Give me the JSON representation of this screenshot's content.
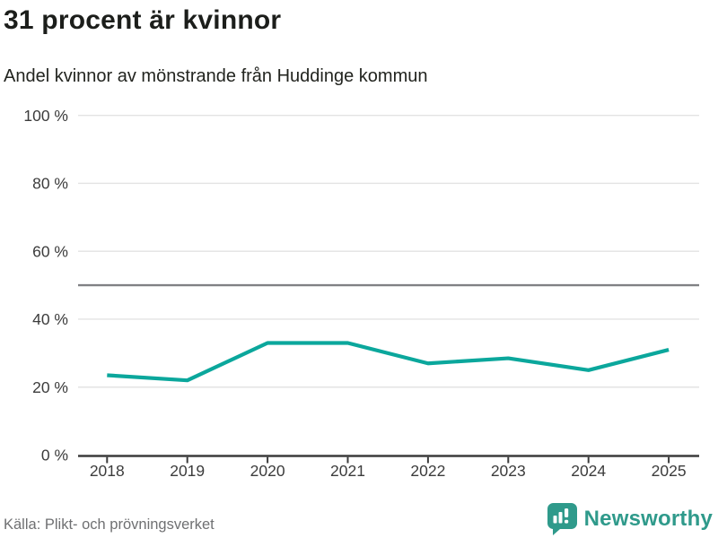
{
  "header": {
    "title": "31 procent är kvinnor",
    "subtitle": "Andel kvinnor av mönstrande från Huddinge kommun"
  },
  "footer": {
    "source": "Källa: Plikt- och prövningsverket",
    "brand_name": "Newsworthy",
    "brand_icon": "bar-chart-speech-bubble-icon"
  },
  "colors": {
    "line": "#0ba79c",
    "grid": "#e3e3e3",
    "reference_line": "#808184",
    "axis": "#3c3c3c",
    "tick_label": "#3c3c3c",
    "title": "#1c1e1b",
    "source_text": "#6f7072",
    "brand": "#2f9a8b",
    "background": "#ffffff"
  },
  "chart_data": {
    "type": "line",
    "title": "31 procent är kvinnor",
    "subtitle": "Andel kvinnor av mönstrande från Huddinge kommun",
    "x": [
      2018,
      2019,
      2020,
      2021,
      2022,
      2023,
      2024,
      2025
    ],
    "series": [
      {
        "name": "Andel kvinnor av mönstrande",
        "values": [
          23.5,
          22,
          33,
          33,
          27,
          28.5,
          25,
          31
        ]
      }
    ],
    "ylim": [
      0,
      100
    ],
    "yticks": [
      0,
      20,
      40,
      60,
      80,
      100
    ],
    "ytick_suffix": " %",
    "reference_line": 50,
    "grid": true,
    "legend": false,
    "markers": false
  }
}
